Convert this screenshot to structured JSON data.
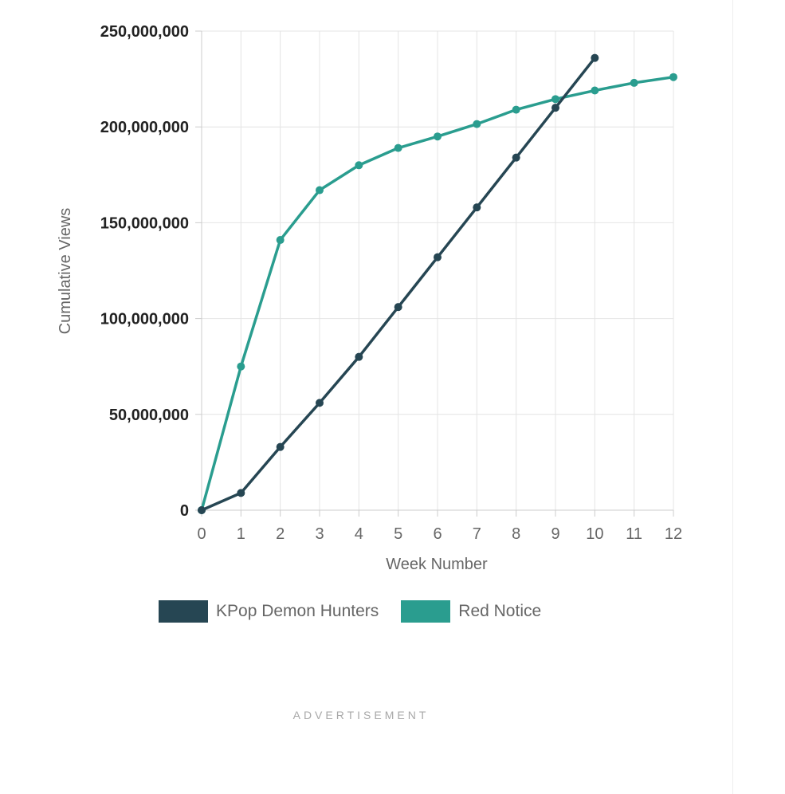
{
  "chart_data": {
    "type": "line",
    "xlabel": "Week Number",
    "ylabel": "Cumulative Views",
    "xlim": [
      0,
      12
    ],
    "ylim": [
      0,
      250000000
    ],
    "x_ticks": [
      "0",
      "1",
      "2",
      "3",
      "4",
      "5",
      "6",
      "7",
      "8",
      "9",
      "10",
      "11",
      "12"
    ],
    "y_ticks": [
      "0",
      "50,000,000",
      "100,000,000",
      "150,000,000",
      "200,000,000",
      "250,000,000"
    ],
    "y_tick_values": [
      0,
      50000000,
      100000000,
      150000000,
      200000000,
      250000000
    ],
    "grid": true,
    "legend_position": "bottom",
    "series": [
      {
        "name": "KPop Demon Hunters",
        "color": "#264653",
        "x": [
          0,
          1,
          2,
          3,
          4,
          5,
          6,
          7,
          8,
          9,
          10
        ],
        "values": [
          0,
          9000000,
          33000000,
          56000000,
          80000000,
          106000000,
          132000000,
          158000000,
          184000000,
          210000000,
          236000000
        ]
      },
      {
        "name": "Red Notice",
        "color": "#2a9d8f",
        "x": [
          0,
          1,
          2,
          3,
          4,
          5,
          6,
          7,
          8,
          9,
          10,
          11,
          12
        ],
        "values": [
          0,
          75000000,
          141000000,
          167000000,
          180000000,
          189000000,
          195000000,
          201500000,
          209000000,
          214500000,
          219000000,
          223000000,
          226000000
        ]
      }
    ]
  },
  "advertisement_label": "ADVERTISEMENT"
}
